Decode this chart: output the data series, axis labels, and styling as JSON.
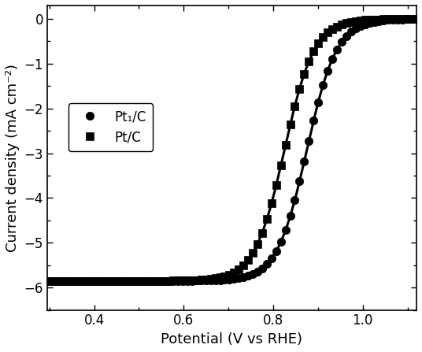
{
  "title": "",
  "xlabel": "Potential (V vs RHE)",
  "ylabel": "Current density (mA cm⁻²)",
  "xlim": [
    0.295,
    1.12
  ],
  "ylim": [
    -6.5,
    0.3
  ],
  "xticks": [
    0.4,
    0.6,
    0.8,
    1.0
  ],
  "yticks": [
    0,
    -1,
    -2,
    -3,
    -4,
    -5,
    -6
  ],
  "line_color": "#000000",
  "background_color": "#ffffff",
  "legend": {
    "Pt1_label": "Pt₁/C",
    "PtC_label": "Pt/C"
  },
  "Pt1_midpoint": 0.875,
  "PtC_midpoint": 0.825,
  "limiting_current": -5.85,
  "Pt1_k": 30,
  "PtC_k": 30,
  "n_markers": 80,
  "marker_size": 7.5
}
